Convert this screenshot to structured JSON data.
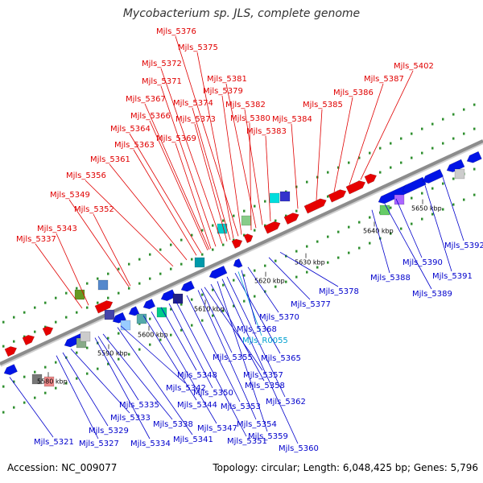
{
  "title": "Mycobacterium sp. JLS, complete genome",
  "accession": "Accession: NC_009077",
  "summary": "Topology: circular; Length: 6,048,425 bp; Genes: 5,796",
  "colors": {
    "forward_gene": "#e60000",
    "reverse_gene": "#0014e6",
    "backbone": "#8c8c8c",
    "dot_track": "#2f8f2f",
    "label_top": "#e00000",
    "label_bottom": "#0000cc",
    "label_rna": "#00a0d0"
  },
  "tick_labels": [
    "5580 kbp",
    "5590 kbp",
    "5600 kbp",
    "5610 kbp",
    "5620 kbp",
    "5630 kbp",
    "5640 kbp",
    "5650 kbp"
  ],
  "top_labels": [
    "Mjls_5337",
    "Mjls_5343",
    "Mjls_5349",
    "Mjls_5352",
    "Mjls_5356",
    "Mjls_5361",
    "Mjls_5363",
    "Mjls_5364",
    "Mjls_5366",
    "Mjls_5367",
    "Mjls_5369",
    "Mjls_5371",
    "Mjls_5372",
    "Mjls_5373",
    "Mjls_5374",
    "Mjls_5375",
    "Mjls_5376",
    "Mjls_5379",
    "Mjls_5380",
    "Mjls_5381",
    "Mjls_5382",
    "Mjls_5383",
    "Mjls_5384",
    "Mjls_5385",
    "Mjls_5386",
    "Mjls_5387",
    "Mjls_5402"
  ],
  "bottom_labels": [
    "Mjls_5321",
    "Mjls_5327",
    "Mjls_5329",
    "Mjls_5333",
    "Mjls_5334",
    "Mjls_5335",
    "Mjls_5338",
    "Mjls_5341",
    "Mjls_5342",
    "Mjls_5344",
    "Mjls_5347",
    "Mjls_5348",
    "Mjls_5350",
    "Mjls_5351",
    "Mjls_5353",
    "Mjls_5354",
    "Mjls_5355",
    "Mjls_5357",
    "Mjls_5358",
    "Mjls_5359",
    "Mjls_5360",
    "Mjls_5362",
    "Mjls_5365",
    "Mjls_R0055",
    "Mjls_5368",
    "Mjls_5370",
    "Mjls_5377",
    "Mjls_5378",
    "Mjls_5388",
    "Mjls_5389",
    "Mjls_5390",
    "Mjls_5391",
    "Mjls_5392"
  ],
  "rna_labels": [
    "Mjls_R0055"
  ]
}
